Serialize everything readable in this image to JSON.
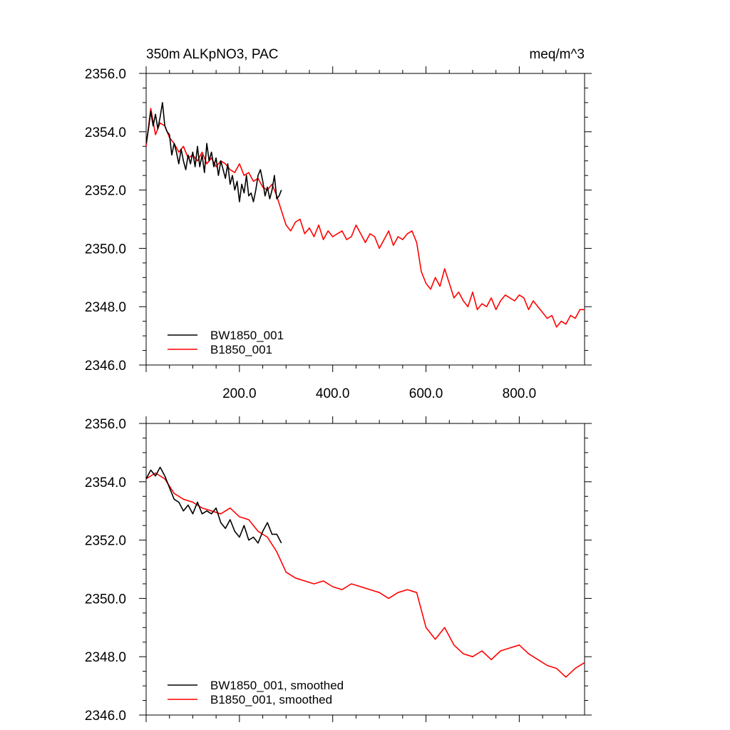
{
  "chart_data": [
    {
      "type": "line",
      "title": "350m ALKpNO3, PAC",
      "units": "meq/m^3",
      "xlabel": "",
      "ylabel": "",
      "xlim": [
        0,
        940
      ],
      "ylim": [
        2346,
        2356
      ],
      "x_ticks": [
        "200.0",
        "400.0",
        "600.0",
        "800.0"
      ],
      "y_ticks": [
        "2346.0",
        "2348.0",
        "2350.0",
        "2352.0",
        "2354.0",
        "2356.0"
      ],
      "legend_position": "bottom-left",
      "series": [
        {
          "name": "BW1850_001",
          "color": "#000000",
          "x": [
            0,
            5,
            10,
            15,
            20,
            25,
            30,
            35,
            40,
            45,
            50,
            55,
            60,
            65,
            70,
            75,
            80,
            85,
            90,
            95,
            100,
            105,
            110,
            115,
            120,
            125,
            130,
            135,
            140,
            145,
            150,
            155,
            160,
            165,
            170,
            175,
            180,
            185,
            190,
            195,
            200,
            205,
            210,
            215,
            220,
            225,
            230,
            235,
            240,
            245,
            250,
            255,
            260,
            265,
            270,
            275,
            280,
            285,
            290
          ],
          "y": [
            2353.6,
            2354.1,
            2354.7,
            2354.2,
            2354.6,
            2354.1,
            2354.5,
            2355.0,
            2354.2,
            2354.0,
            2353.9,
            2353.2,
            2353.6,
            2353.3,
            2352.9,
            2353.4,
            2353.0,
            2352.7,
            2353.2,
            2352.9,
            2353.3,
            2352.8,
            2353.5,
            2352.8,
            2353.2,
            2352.6,
            2353.6,
            2353.0,
            2353.3,
            2352.8,
            2353.1,
            2352.5,
            2353.0,
            2352.7,
            2352.4,
            2352.9,
            2352.2,
            2352.5,
            2352.0,
            2352.3,
            2351.6,
            2352.2,
            2351.9,
            2352.5,
            2351.8,
            2351.9,
            2351.6,
            2352.0,
            2352.5,
            2352.7,
            2352.3,
            2351.8,
            2352.1,
            2351.7,
            2352.0,
            2352.5,
            2351.7,
            2351.8,
            2352.0
          ]
        },
        {
          "name": "B1850_001",
          "color": "#ff0000",
          "x": [
            0,
            10,
            20,
            30,
            40,
            50,
            60,
            70,
            80,
            90,
            100,
            110,
            120,
            130,
            140,
            150,
            160,
            170,
            180,
            190,
            200,
            210,
            220,
            230,
            240,
            250,
            260,
            270,
            280,
            290,
            300,
            310,
            320,
            330,
            340,
            350,
            360,
            370,
            380,
            390,
            400,
            410,
            420,
            430,
            440,
            450,
            460,
            470,
            480,
            490,
            500,
            510,
            520,
            530,
            540,
            550,
            560,
            570,
            580,
            590,
            600,
            610,
            620,
            630,
            640,
            650,
            660,
            670,
            680,
            690,
            700,
            710,
            720,
            730,
            740,
            750,
            760,
            770,
            780,
            790,
            800,
            810,
            820,
            830,
            840,
            850,
            860,
            870,
            880,
            890,
            900,
            910,
            920,
            930,
            940
          ],
          "y": [
            2353.5,
            2354.8,
            2353.9,
            2354.3,
            2354.2,
            2353.8,
            2353.6,
            2353.3,
            2353.5,
            2353.1,
            2353.2,
            2353.0,
            2353.3,
            2352.9,
            2353.1,
            2352.8,
            2353.0,
            2352.9,
            2352.7,
            2352.6,
            2352.9,
            2352.5,
            2352.6,
            2352.3,
            2352.4,
            2352.1,
            2352.0,
            2352.2,
            2351.8,
            2351.3,
            2350.8,
            2350.6,
            2350.9,
            2351.0,
            2350.5,
            2350.7,
            2350.4,
            2350.8,
            2350.3,
            2350.6,
            2350.4,
            2350.5,
            2350.6,
            2350.3,
            2350.4,
            2350.8,
            2350.5,
            2350.2,
            2350.5,
            2350.4,
            2350.0,
            2350.3,
            2350.6,
            2350.1,
            2350.4,
            2350.3,
            2350.5,
            2350.6,
            2350.2,
            2349.2,
            2348.8,
            2348.6,
            2349.0,
            2348.7,
            2349.3,
            2348.8,
            2348.3,
            2348.5,
            2348.2,
            2348.0,
            2348.5,
            2347.9,
            2348.1,
            2348.0,
            2348.3,
            2347.9,
            2348.2,
            2348.4,
            2348.3,
            2348.2,
            2348.4,
            2348.3,
            2347.9,
            2348.2,
            2348.0,
            2347.8,
            2347.6,
            2347.7,
            2347.3,
            2347.5,
            2347.4,
            2347.7,
            2347.6,
            2347.9,
            2347.9
          ]
        }
      ]
    },
    {
      "type": "line",
      "title": "",
      "xlabel": "",
      "ylabel": "",
      "xlim": [
        0,
        940
      ],
      "ylim": [
        2346,
        2356
      ],
      "y_ticks": [
        "2346.0",
        "2348.0",
        "2350.0",
        "2352.0",
        "2354.0",
        "2356.0"
      ],
      "legend_position": "bottom-left",
      "series": [
        {
          "name": "BW1850_001, smoothed",
          "color": "#000000",
          "x": [
            0,
            10,
            20,
            30,
            40,
            50,
            60,
            70,
            80,
            90,
            100,
            110,
            120,
            130,
            140,
            150,
            160,
            170,
            180,
            190,
            200,
            210,
            220,
            230,
            240,
            250,
            260,
            270,
            280,
            290
          ],
          "y": [
            2354.1,
            2354.4,
            2354.2,
            2354.5,
            2354.2,
            2353.8,
            2353.4,
            2353.3,
            2353.0,
            2353.2,
            2352.9,
            2353.3,
            2352.9,
            2353.0,
            2352.9,
            2353.1,
            2352.6,
            2352.4,
            2352.7,
            2352.3,
            2352.1,
            2352.5,
            2352.0,
            2352.1,
            2351.9,
            2352.3,
            2352.6,
            2352.2,
            2352.2,
            2351.9
          ]
        },
        {
          "name": "B1850_001, smoothed",
          "color": "#ff0000",
          "x": [
            0,
            20,
            40,
            60,
            80,
            100,
            120,
            140,
            160,
            180,
            200,
            220,
            240,
            260,
            280,
            300,
            320,
            340,
            360,
            380,
            400,
            420,
            440,
            460,
            480,
            500,
            520,
            540,
            560,
            580,
            600,
            620,
            640,
            660,
            680,
            700,
            720,
            740,
            760,
            780,
            800,
            820,
            840,
            860,
            880,
            900,
            920,
            940
          ],
          "y": [
            2354.1,
            2354.3,
            2354.1,
            2353.6,
            2353.4,
            2353.3,
            2353.1,
            2353.0,
            2352.9,
            2353.1,
            2352.8,
            2352.7,
            2352.3,
            2352.1,
            2351.6,
            2350.9,
            2350.7,
            2350.6,
            2350.5,
            2350.6,
            2350.4,
            2350.3,
            2350.5,
            2350.4,
            2350.3,
            2350.2,
            2350.0,
            2350.2,
            2350.3,
            2350.2,
            2349.0,
            2348.6,
            2349.0,
            2348.4,
            2348.1,
            2348.0,
            2348.2,
            2347.9,
            2348.2,
            2348.3,
            2348.4,
            2348.1,
            2347.9,
            2347.7,
            2347.6,
            2347.3,
            2347.6,
            2347.8
          ]
        }
      ]
    }
  ]
}
